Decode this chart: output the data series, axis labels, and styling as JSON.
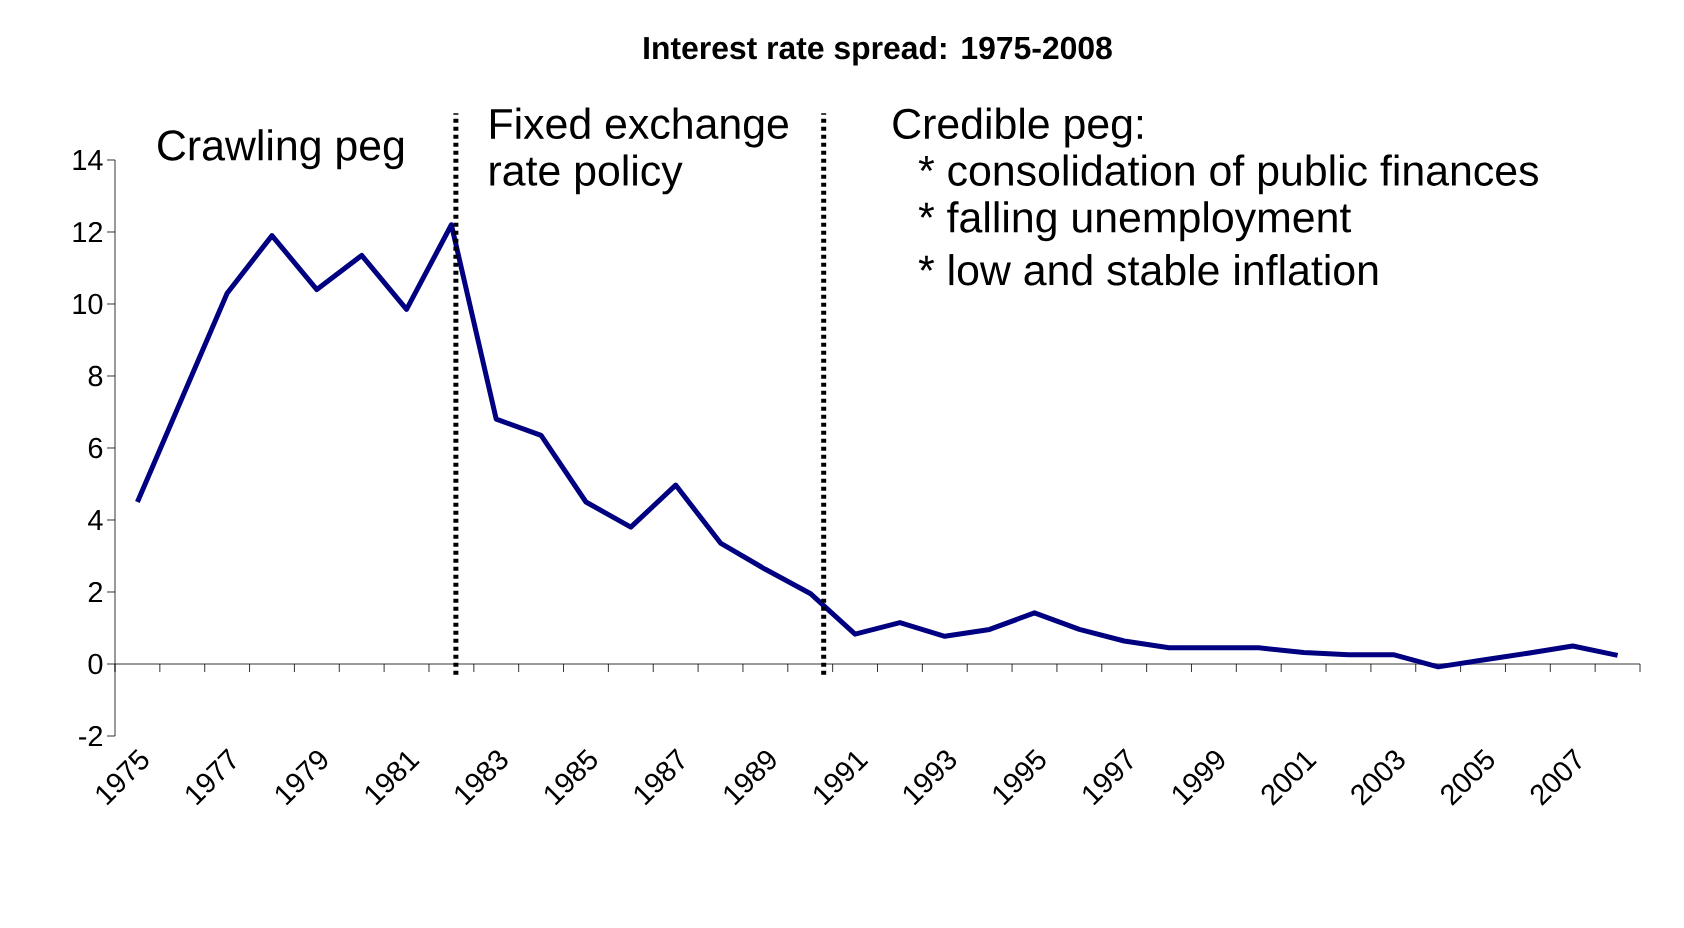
{
  "chart_data": {
    "type": "line",
    "title": "Interest rate spread: 1975-2008",
    "x": [
      1975,
      1976,
      1977,
      1978,
      1979,
      1980,
      1981,
      1982,
      1983,
      1984,
      1985,
      1986,
      1987,
      1988,
      1989,
      1990,
      1991,
      1992,
      1993,
      1994,
      1995,
      1996,
      1997,
      1998,
      1999,
      2000,
      2001,
      2002,
      2003,
      2004,
      2005,
      2006,
      2007,
      2008
    ],
    "series": [
      {
        "color": "#000080",
        "values": [
          4.5,
          7.4,
          10.3,
          11.9,
          10.4,
          11.35,
          9.85,
          12.2,
          6.8,
          6.35,
          4.5,
          3.8,
          4.97,
          3.36,
          2.63,
          1.96,
          0.83,
          1.15,
          0.77,
          0.96,
          1.42,
          0.96,
          0.64,
          0.45,
          0.45,
          0.45,
          0.32,
          0.26,
          0.26,
          -0.08,
          0.11,
          0.3,
          0.5,
          0.24
        ]
      }
    ],
    "xlim": [
      1974.5,
      2008.5
    ],
    "xticks": [
      1975,
      1977,
      1979,
      1981,
      1983,
      1985,
      1987,
      1989,
      1991,
      1993,
      1995,
      1997,
      1999,
      2001,
      2003,
      2005,
      2007
    ],
    "ylim": [
      -2,
      14
    ],
    "yticks": [
      -2,
      0,
      2,
      4,
      6,
      8,
      10,
      12,
      14
    ],
    "ref_lines": [
      {
        "axis": "x",
        "value": 1982.1,
        "color": "#000000",
        "line_style": "dotted"
      },
      {
        "axis": "x",
        "value": 1990.3,
        "color": "#000000",
        "line_style": "dotted"
      }
    ],
    "annotations": [
      "Crawling peg",
      "Fixed exchange",
      "rate policy",
      "Credible peg:",
      "* consolidation of public finances",
      "* falling unemployment",
      "* low and stable inflation"
    ],
    "marker": "none",
    "line_style": "solid"
  }
}
